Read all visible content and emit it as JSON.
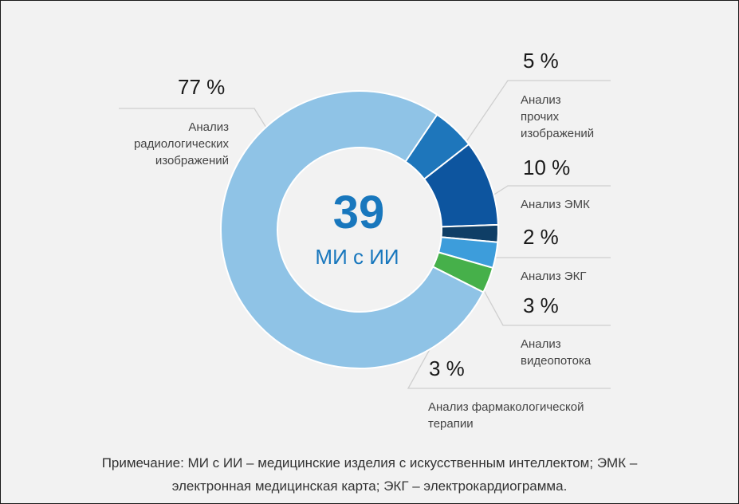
{
  "chart_data": {
    "type": "pie",
    "center_value": "39",
    "center_label": "МИ с ИИ",
    "slices": [
      {
        "percent": 77,
        "label_text": "77 %",
        "label_lines": [
          "Анализ",
          "радиологических",
          "изображений"
        ],
        "color": "#8fc3e6"
      },
      {
        "percent": 5,
        "label_text": "5 %",
        "label_lines": [
          "Анализ",
          "прочих",
          "изображений"
        ],
        "color": "#1e76bb"
      },
      {
        "percent": 10,
        "label_text": "10 %",
        "label_lines": [
          "Анализ ЭМК"
        ],
        "color": "#0d559f"
      },
      {
        "percent": 2,
        "label_text": "2 %",
        "label_lines": [
          "Анализ ЭКГ"
        ],
        "color": "#0f3e66"
      },
      {
        "percent": 3,
        "label_text": "3 %",
        "label_lines": [
          "Анализ",
          "видеопотока"
        ],
        "color": "#3d9ddb"
      },
      {
        "percent": 3,
        "label_text": "3 %",
        "label_lines": [
          "Анализ фармакологической",
          "терапии"
        ],
        "color": "#46b04a"
      }
    ]
  },
  "colors": {
    "accent": "#1877bd",
    "background": "#f2f2f2"
  },
  "note": {
    "line1": "Примечание: МИ с ИИ – медицинские изделия с искусственным интеллектом; ЭМК –",
    "line2": "электронная медицинская карта; ЭКГ – электрокардиограмма."
  }
}
